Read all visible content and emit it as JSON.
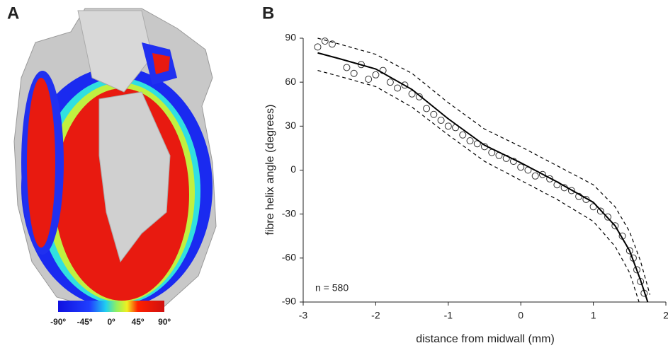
{
  "panel_a": {
    "label": "A",
    "colorbar_labels": [
      "-90º",
      "-45º",
      "0º",
      "45º",
      "90º"
    ]
  },
  "chart_data": {
    "type": "scatter",
    "panel_label": "B",
    "xlabel": "distance from midwall (mm)",
    "ylabel": "fibre helix angle (degrees)",
    "annotation": "n = 580",
    "xlim": [
      -3,
      2
    ],
    "xticks": [
      -3,
      -2,
      -1,
      0,
      1,
      2
    ],
    "ylim": [
      -90,
      90
    ],
    "yticks": [
      -90,
      -60,
      -30,
      0,
      30,
      60,
      90
    ],
    "x": [
      -2.8,
      -2.7,
      -2.6,
      -2.4,
      -2.3,
      -2.2,
      -2.1,
      -2.0,
      -1.9,
      -1.8,
      -1.7,
      -1.6,
      -1.5,
      -1.4,
      -1.3,
      -1.2,
      -1.1,
      -1.0,
      -0.9,
      -0.8,
      -0.7,
      -0.6,
      -0.5,
      -0.4,
      -0.3,
      -0.2,
      -0.1,
      0,
      0.1,
      0.2,
      0.3,
      0.4,
      0.5,
      0.6,
      0.7,
      0.8,
      0.9,
      1.0,
      1.1,
      1.2,
      1.3,
      1.4,
      1.5,
      1.55,
      1.6,
      1.65,
      1.7
    ],
    "values": [
      84,
      88,
      86,
      70,
      66,
      72,
      62,
      65,
      68,
      60,
      56,
      58,
      52,
      50,
      42,
      38,
      34,
      30,
      29,
      24,
      20,
      18,
      16,
      12,
      10,
      8,
      6,
      2,
      0,
      -4,
      -3,
      -6,
      -10,
      -12,
      -14,
      -18,
      -20,
      -25,
      -28,
      -32,
      -38,
      -45,
      -55,
      -60,
      -68,
      -76,
      -84
    ],
    "lines": [
      {
        "style": "solid",
        "x": [
          -2.8,
          -2.5,
          -2,
          -1.5,
          -1,
          -0.5,
          0,
          0.5,
          1,
          1.3,
          1.5,
          1.65,
          1.75
        ],
        "values": [
          80,
          76,
          69,
          55,
          35,
          17,
          5,
          -8,
          -22,
          -38,
          -55,
          -75,
          -90
        ]
      },
      {
        "style": "dashed",
        "x": [
          -2.8,
          -2.5,
          -2,
          -1.5,
          -1,
          -0.5,
          0,
          0.5,
          1,
          1.3,
          1.5,
          1.65,
          1.78
        ],
        "values": [
          90,
          86,
          79,
          66,
          46,
          28,
          16,
          3,
          -10,
          -25,
          -42,
          -62,
          -85
        ]
      },
      {
        "style": "dashed",
        "x": [
          -2.8,
          -2.5,
          -2,
          -1.5,
          -1,
          -0.5,
          0,
          0.5,
          1,
          1.3,
          1.5,
          1.63
        ],
        "values": [
          68,
          64,
          57,
          43,
          24,
          6,
          -7,
          -20,
          -35,
          -52,
          -70,
          -90
        ]
      }
    ]
  }
}
